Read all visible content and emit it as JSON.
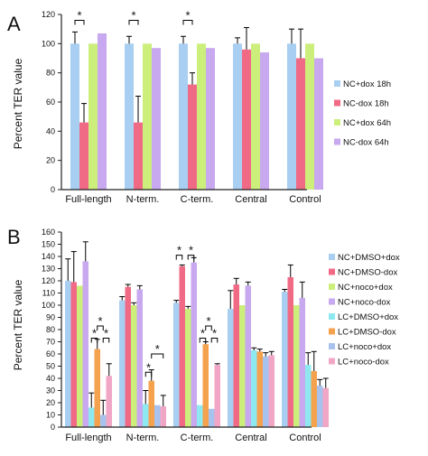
{
  "panels": [
    {
      "letter": "A",
      "chart_data": {
        "type": "bar",
        "ylabel": "Percent TER value",
        "ylim": [
          0,
          120
        ],
        "yticks": [
          0,
          20,
          40,
          60,
          80,
          100,
          120
        ],
        "categories": [
          "Full-length",
          "N-term.",
          "C-term.",
          "Central",
          "Control"
        ],
        "legend_position": "right",
        "series": [
          {
            "name": "NC+dox 18h",
            "color": "#a8cff2",
            "values": [
              100,
              100,
              100,
              100,
              100
            ],
            "errors": [
              8,
              5,
              5,
              4,
              10
            ]
          },
          {
            "name": "NC-dox 18h",
            "color": "#f06a86",
            "values": [
              46,
              46,
              72,
              96,
              90
            ],
            "errors": [
              13,
              18,
              8,
              15,
              20
            ]
          },
          {
            "name": "NC+dox 64h",
            "color": "#ccef7c",
            "values": [
              100,
              100,
              100,
              100,
              100
            ],
            "errors": [
              0,
              0,
              0,
              0,
              0
            ]
          },
          {
            "name": "NC-dox 64h",
            "color": "#c8a8ee",
            "values": [
              107,
              97,
              97,
              94,
              90
            ],
            "errors": [
              0,
              0,
              0,
              0,
              0
            ]
          }
        ],
        "significance": [
          {
            "category": 0,
            "label": "*"
          },
          {
            "category": 1,
            "label": "*"
          },
          {
            "category": 2,
            "label": "*"
          }
        ]
      }
    },
    {
      "letter": "B",
      "chart_data": {
        "type": "bar",
        "ylabel": "Percent TER value",
        "ylim": [
          0,
          160
        ],
        "yticks": [
          0,
          10,
          20,
          30,
          40,
          50,
          60,
          70,
          80,
          90,
          100,
          110,
          120,
          130,
          140,
          150,
          160
        ],
        "categories": [
          "Full-length",
          "N-term.",
          "C-term.",
          "Central",
          "Control"
        ],
        "legend_position": "right",
        "series": [
          {
            "name": "NC+DMSO+dox",
            "color": "#a8cff2",
            "values": [
              120,
              104,
              102,
              97,
              111
            ],
            "errors": [
              18,
              3,
              2,
              15,
              2
            ]
          },
          {
            "name": "NC+DMSO-dox",
            "color": "#f06a86",
            "values": [
              119,
              115,
              132,
              117,
              123
            ],
            "errors": [
              25,
              2,
              1,
              5,
              10
            ]
          },
          {
            "name": "NC+noco+dox",
            "color": "#ccef7c",
            "values": [
              116,
              100,
              97,
              100,
              100
            ],
            "errors": [
              0,
              2,
              2,
              0,
              0
            ]
          },
          {
            "name": "NC+noco-dox",
            "color": "#c8a8ee",
            "values": [
              136,
              113,
              135,
              116,
              106
            ],
            "errors": [
              16,
              3,
              4,
              3,
              13
            ]
          },
          {
            "name": "LC+DMSO+dox",
            "color": "#8ee8f0",
            "values": [
              16,
              19,
              18,
              63,
              51
            ],
            "errors": [
              12,
              11,
              0,
              2,
              10
            ]
          },
          {
            "name": "LC+DMSO-dox",
            "color": "#f5a24e",
            "values": [
              64,
              38,
              68,
              62,
              46
            ],
            "errors": [
              8,
              9,
              2,
              2,
              16
            ]
          },
          {
            "name": "LC+noco+dox",
            "color": "#a8c2ee",
            "values": [
              10,
              18,
              15,
              58,
              34
            ],
            "errors": [
              12,
              0,
              0,
              3,
              5
            ]
          },
          {
            "name": "LC+noco-dox",
            "color": "#f2a6c6",
            "values": [
              42,
              17,
              51,
              59,
              32
            ],
            "errors": [
              10,
              9,
              1,
              3,
              8
            ]
          }
        ],
        "significance": [
          {
            "category": 0,
            "label": "*"
          },
          {
            "category": 0,
            "label": "*"
          },
          {
            "category": 0,
            "label": "*"
          },
          {
            "category": 1,
            "label": "*"
          },
          {
            "category": 1,
            "label": "*"
          },
          {
            "category": 2,
            "label": "*"
          },
          {
            "category": 2,
            "label": "*"
          },
          {
            "category": 2,
            "label": "*"
          },
          {
            "category": 2,
            "label": "*"
          },
          {
            "category": 2,
            "label": "*"
          }
        ]
      }
    }
  ]
}
